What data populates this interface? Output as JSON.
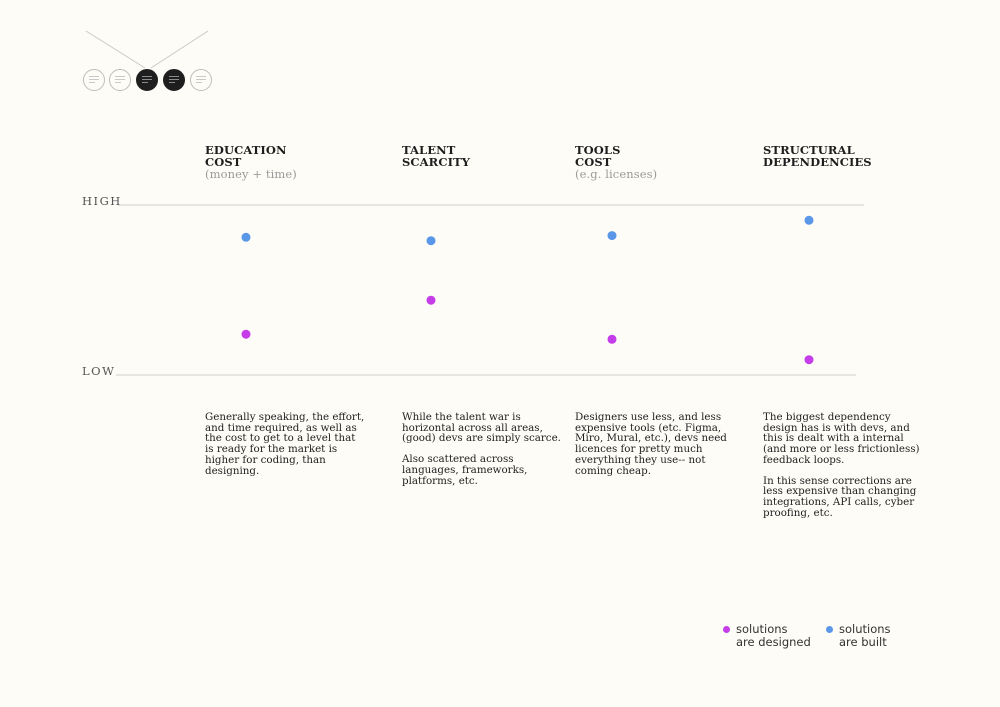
{
  "nav": {
    "dots": [
      {
        "state": "inactive"
      },
      {
        "state": "inactive"
      },
      {
        "state": "active"
      },
      {
        "state": "active"
      },
      {
        "state": "inactive"
      }
    ]
  },
  "chart_data": {
    "type": "scatter",
    "title": "",
    "xlabel": "",
    "ylabel": "",
    "y_axis_labels": {
      "high": "HIGH",
      "low": "LOW"
    },
    "ylim": [
      0,
      1
    ],
    "grid": false,
    "legend_position": "bottom-right",
    "categories": [
      {
        "title_lines": [
          "EDUCATION",
          "COST"
        ],
        "subtitle": "(money + time)",
        "description": [
          [
            "Generally speaking, the effort,",
            "and time required, as well as",
            "the cost to get to a level that",
            "is ready for the market is",
            "higher for coding, than",
            "designing."
          ]
        ]
      },
      {
        "title_lines": [
          "TALENT",
          "SCARCITY"
        ],
        "subtitle": "",
        "description": [
          [
            "While the talent war is",
            "horizontal across all areas,",
            "(good) devs are simply scarce."
          ],
          [
            "Also scattered across",
            "languages, frameworks,",
            "platforms, etc."
          ]
        ]
      },
      {
        "title_lines": [
          "TOOLS",
          "COST"
        ],
        "subtitle": "(e.g. licenses)",
        "description": [
          [
            "Designers use less, and less",
            "expensive tools (etc. Figma,",
            "Miro, Mural, etc.), devs need",
            "licences for pretty much",
            "everything they use-- not",
            "coming cheap."
          ]
        ]
      },
      {
        "title_lines": [
          "STRUCTURAL",
          "DEPENDENCIES"
        ],
        "subtitle": "",
        "description": [
          [
            "The biggest dependency",
            "design has is with devs, and",
            "this is dealt with a internal",
            "(and more or less frictionless)",
            "feedback loops."
          ],
          [
            "In this sense corrections are",
            "less expensive than changing",
            "integrations, API calls, cyber",
            "proofing, etc."
          ]
        ]
      }
    ],
    "series": [
      {
        "name_lines": [
          "solutions",
          "are designed"
        ],
        "color": "#c43de8",
        "values": [
          0.24,
          0.44,
          0.21,
          0.09
        ]
      },
      {
        "name_lines": [
          "solutions",
          "are built"
        ],
        "color": "#5b97e8",
        "values": [
          0.81,
          0.79,
          0.82,
          0.91
        ]
      }
    ]
  }
}
